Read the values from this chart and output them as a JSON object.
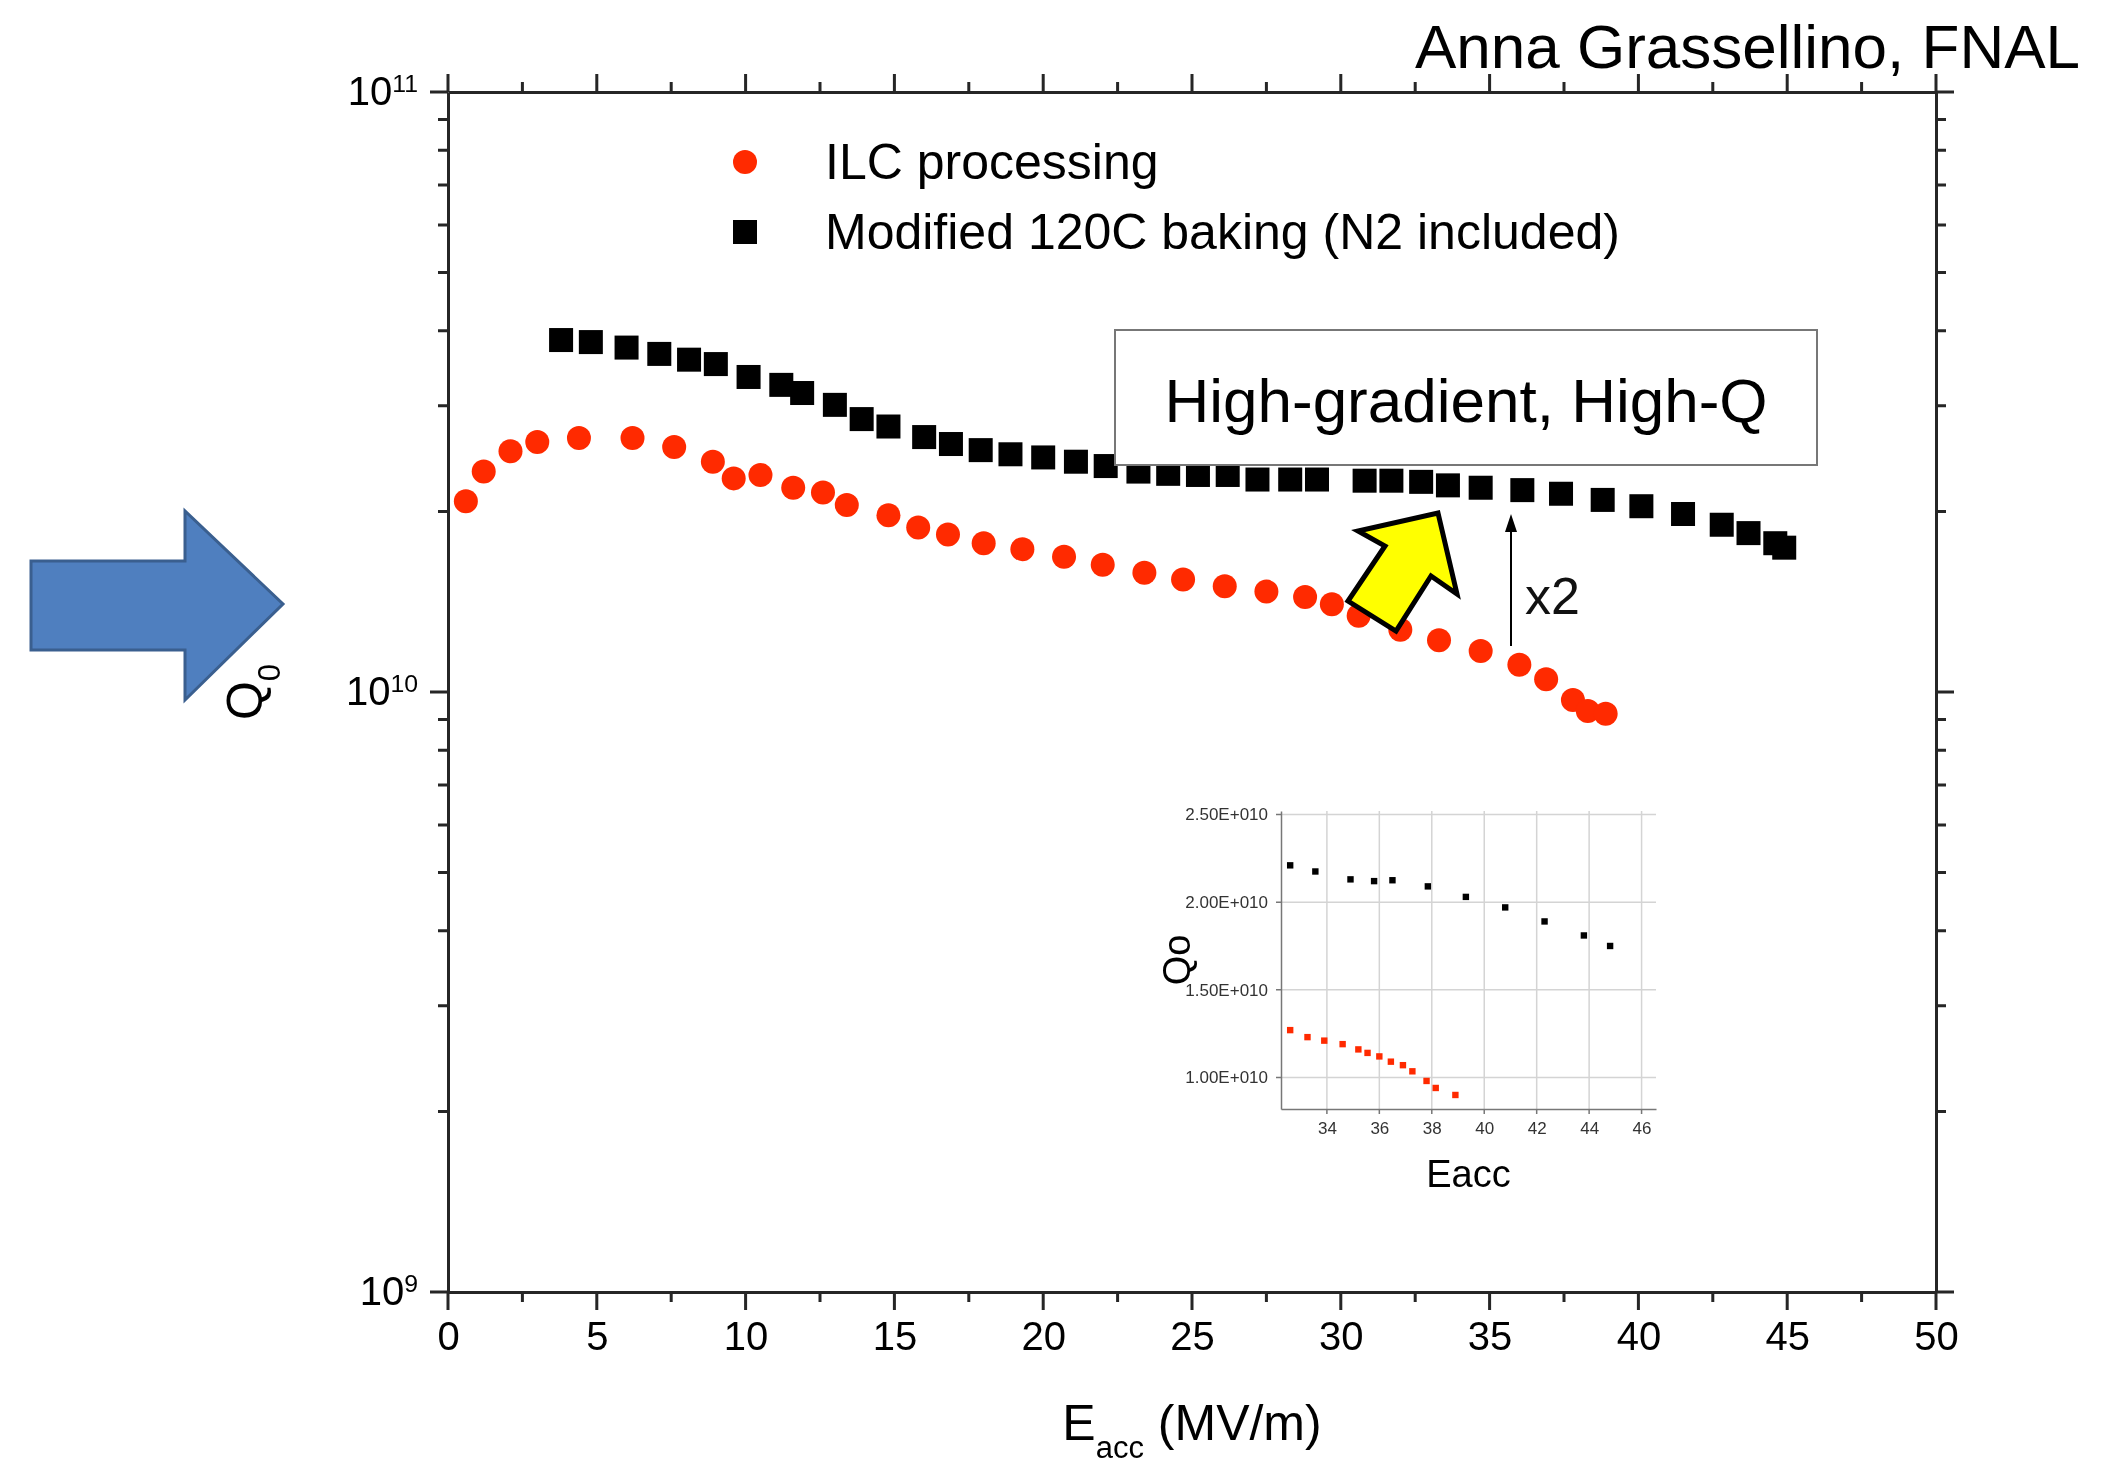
{
  "chart_data": [
    {
      "type": "scatter",
      "xlabel": "E$_{acc}$ (MV/m)",
      "ylabel": "Q$_{0}$",
      "log": "y",
      "legend": "top",
      "xlim": [
        0,
        50
      ],
      "ylim": [
        1000000000,
        100000000000
      ],
      "xticks": [
        0,
        {
          "value": 2.5,
          "label": null
        },
        5,
        {
          "value": 7.5,
          "label": null
        },
        10,
        {
          "value": 12.5,
          "label": null
        },
        15,
        {
          "value": 17.5,
          "label": null
        },
        20,
        {
          "value": 22.5,
          "label": null
        },
        25,
        {
          "value": 27.5,
          "label": null
        },
        30,
        {
          "value": 32.5,
          "label": null
        },
        35,
        {
          "value": 37.5,
          "label": null
        },
        40,
        {
          "value": 42.5,
          "label": null
        },
        45,
        {
          "value": 47.5,
          "label": null
        },
        50
      ],
      "yticks": [
        {
          "value": 1000000000,
          "label": "10$^{9}$"
        },
        {
          "value": 2000000000,
          "label": null
        },
        {
          "value": 3000000000,
          "label": null
        },
        {
          "value": 4000000000,
          "label": null
        },
        {
          "value": 5000000000,
          "label": null
        },
        {
          "value": 6000000000,
          "label": null
        },
        {
          "value": 7000000000,
          "label": null
        },
        {
          "value": 8000000000,
          "label": null
        },
        {
          "value": 9000000000,
          "label": null
        },
        {
          "value": 10000000000,
          "label": "10$^{10}$"
        },
        {
          "value": 20000000000,
          "label": null
        },
        {
          "value": 30000000000,
          "label": null
        },
        {
          "value": 40000000000,
          "label": null
        },
        {
          "value": 50000000000,
          "label": null
        },
        {
          "value": 60000000000,
          "label": null
        },
        {
          "value": 70000000000,
          "label": null
        },
        {
          "value": 80000000000,
          "label": null
        },
        {
          "value": 90000000000,
          "label": null
        },
        {
          "value": 100000000000,
          "label": "10$^{11}$"
        }
      ],
      "annotations": [
        "Anna Grassellino, FNAL",
        "High-gradient, High-Q",
        "x2"
      ],
      "series": [
        {
          "name": "ILC processing",
          "color": "#ff2a00",
          "marker": "circle",
          "x": [
            0.6,
            1.2,
            2.1,
            3.0,
            4.4,
            6.2,
            7.6,
            8.9,
            9.6,
            10.5,
            11.6,
            12.6,
            13.4,
            14.8,
            15.8,
            16.8,
            18.0,
            19.3,
            20.7,
            22.0,
            23.4,
            24.7,
            26.1,
            27.5,
            28.8,
            29.7,
            30.6,
            32.0,
            33.3,
            34.7,
            36.0,
            36.9,
            37.8,
            38.3,
            38.9
          ],
          "values": [
            20800000000,
            23300000000,
            25200000000,
            26100000000,
            26500000000,
            26500000000,
            25600000000,
            24200000000,
            22700000000,
            23000000000,
            21900000000,
            21500000000,
            20500000000,
            19700000000,
            18800000000,
            18300000000,
            17700000000,
            17300000000,
            16800000000,
            16300000000,
            15800000000,
            15400000000,
            15000000000,
            14700000000,
            14400000000,
            14000000000,
            13400000000,
            12700000000,
            12200000000,
            11700000000,
            11100000000,
            10500000000,
            9700000000,
            9300000000,
            9200000000
          ]
        },
        {
          "name": "Modified 120C baking (N2 included)",
          "color": "#000000",
          "marker": "square",
          "x": [
            3.8,
            4.8,
            6.0,
            7.1,
            8.1,
            9.0,
            10.1,
            11.2,
            11.9,
            13.0,
            13.9,
            14.8,
            16.0,
            16.9,
            17.9,
            18.9,
            20.0,
            21.1,
            22.1,
            23.2,
            24.2,
            25.2,
            26.2,
            27.2,
            28.3,
            29.2,
            30.8,
            31.7,
            32.7,
            33.6,
            34.7,
            36.1,
            37.4,
            38.8,
            40.1,
            41.5,
            42.8,
            43.7,
            44.6,
            44.9
          ],
          "values": [
            38600000000,
            38300000000,
            37500000000,
            36600000000,
            35800000000,
            35200000000,
            33500000000,
            32500000000,
            31500000000,
            30100000000,
            28500000000,
            27700000000,
            26600000000,
            25900000000,
            25300000000,
            24900000000,
            24600000000,
            24200000000,
            23800000000,
            23300000000,
            23100000000,
            23000000000,
            23000000000,
            22600000000,
            22600000000,
            22600000000,
            22500000000,
            22500000000,
            22400000000,
            22100000000,
            21900000000,
            21700000000,
            21400000000,
            20900000000,
            20400000000,
            19800000000,
            19000000000,
            18400000000,
            17700000000,
            17400000000
          ]
        }
      ]
    },
    {
      "type": "scatter",
      "xlabel": "Eacc",
      "ylabel": "Qo",
      "grid": true,
      "xlim": [
        32.25,
        46.55
      ],
      "ylim": [
        8200000000,
        25200000000
      ],
      "xticks": [
        34,
        36,
        38,
        40,
        42,
        44,
        46
      ],
      "yticks": [
        {
          "value": 10000000000,
          "label": "1.00E+010"
        },
        {
          "value": 15000000000,
          "label": "1.50E+010"
        },
        {
          "value": 20000000000,
          "label": "2.00E+010"
        },
        {
          "value": 25000000000,
          "label": "2.50E+010"
        }
      ],
      "series": [
        {
          "color": "#000000",
          "marker": "square",
          "x": [
            32.6,
            33.56,
            34.9,
            35.8,
            36.5,
            37.85,
            39.3,
            40.8,
            42.3,
            43.8,
            44.8
          ],
          "values": [
            22100000000,
            21750000000,
            21300000000,
            21200000000,
            21250000000,
            20900000000,
            20300000000,
            19700000000,
            18900000000,
            18100000000,
            17500000000
          ]
        },
        {
          "color": "#ff2a00",
          "marker": "square",
          "x": [
            32.6,
            33.26,
            33.9,
            34.6,
            35.2,
            35.55,
            36.0,
            36.44,
            36.9,
            37.26,
            37.8,
            38.15,
            38.9
          ],
          "values": [
            12700000000,
            12300000000,
            12100000000,
            11900000000,
            11600000000,
            11400000000,
            11200000000,
            10900000000,
            10700000000,
            10350000000,
            9800000000,
            9400000000,
            9000000000
          ]
        }
      ]
    }
  ]
}
